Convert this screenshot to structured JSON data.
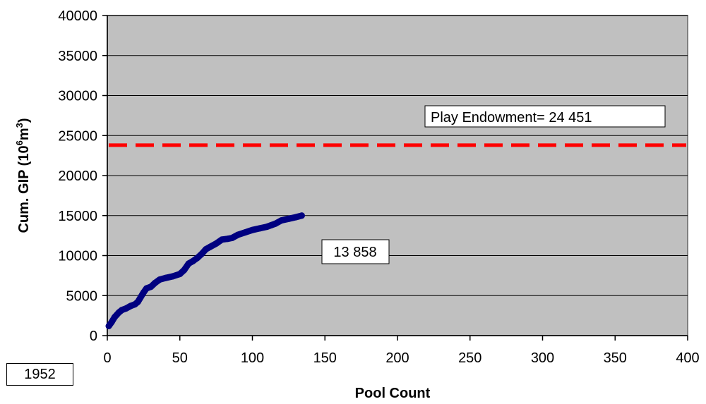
{
  "chart_data": {
    "type": "line",
    "title": "",
    "xlabel": "Pool Count",
    "ylabel_main": "Cum. GIP (10",
    "ylabel_sup1": "6",
    "ylabel_mid": "m",
    "ylabel_sup2": "3",
    "ylabel_end": ")",
    "xlim": [
      0,
      400
    ],
    "ylim": [
      0,
      40000
    ],
    "xticks": [
      0,
      50,
      100,
      150,
      200,
      250,
      300,
      350,
      400
    ],
    "yticks": [
      0,
      5000,
      10000,
      15000,
      20000,
      25000,
      30000,
      35000,
      40000
    ],
    "grid": "horizontal",
    "plot_background": "#c0c0c0",
    "series": [
      {
        "color": "#000080",
        "x": [
          1,
          3,
          5,
          8,
          10,
          13,
          16,
          19,
          21,
          23,
          25,
          27,
          30,
          33,
          36,
          40,
          45,
          50,
          53,
          56,
          59,
          62,
          65,
          68,
          71,
          75,
          79,
          83,
          86,
          90,
          95,
          100,
          105,
          110,
          113,
          116,
          120,
          125,
          130,
          134
        ],
        "y": [
          1200,
          1700,
          2300,
          2900,
          3200,
          3400,
          3700,
          3900,
          4200,
          4800,
          5400,
          5900,
          6100,
          6600,
          7000,
          7200,
          7400,
          7700,
          8200,
          9000,
          9300,
          9700,
          10200,
          10800,
          11100,
          11500,
          12000,
          12100,
          12200,
          12600,
          12900,
          13200,
          13400,
          13600,
          13800,
          14000,
          14400,
          14600,
          14800,
          15000
        ]
      }
    ],
    "reference_line": {
      "y": 23800,
      "color": "#ff0000",
      "style": "dashed"
    },
    "annotations": [
      {
        "text": "Play Endowment= 24 451"
      },
      {
        "text": "13 858"
      }
    ]
  },
  "year_label": "1952"
}
